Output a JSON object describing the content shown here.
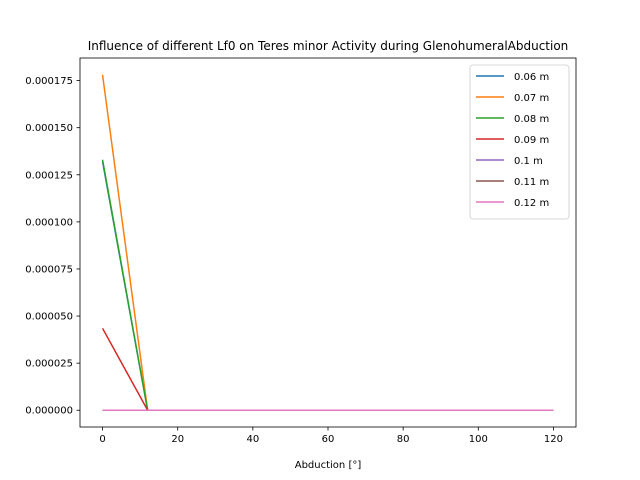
{
  "chart_data": {
    "type": "line",
    "title": "Influence of different Lf0 on Teres minor Activity during GlenohumeralAbduction",
    "xlabel": "Abduction [°]",
    "ylabel": "",
    "xlim": [
      -6,
      126
    ],
    "ylim": [
      -8.9e-06,
      0.000187
    ],
    "xticks": [
      0,
      20,
      40,
      60,
      80,
      100,
      120
    ],
    "xtick_labels": [
      "0",
      "20",
      "40",
      "60",
      "80",
      "100",
      "120"
    ],
    "yticks": [
      0,
      2.5e-05,
      5e-05,
      7.5e-05,
      0.0001,
      0.000125,
      0.00015,
      0.000175
    ],
    "ytick_labels": [
      "0.000000",
      "0.000025",
      "0.000050",
      "0.000075",
      "0.000100",
      "0.000125",
      "0.000150",
      "0.000175"
    ],
    "grid": false,
    "legend_position": "top-right",
    "x": [
      0,
      12,
      24,
      36,
      48,
      60,
      72,
      84,
      96,
      108,
      120
    ],
    "series": [
      {
        "name": "0.06 m",
        "color": "#1f77b4",
        "values": [
          0.000132,
          0,
          0,
          0,
          0,
          0,
          0,
          0,
          0,
          0,
          0
        ]
      },
      {
        "name": "0.07 m",
        "color": "#ff7f0e",
        "values": [
          0.000178,
          0,
          0,
          0,
          0,
          0,
          0,
          0,
          0,
          0,
          0
        ]
      },
      {
        "name": "0.08 m",
        "color": "#2ca02c",
        "values": [
          0.000133,
          0,
          0,
          0,
          0,
          0,
          0,
          0,
          0,
          0,
          0
        ]
      },
      {
        "name": "0.09 m",
        "color": "#d62728",
        "values": [
          4.35e-05,
          0,
          0,
          0,
          0,
          0,
          0,
          0,
          0,
          0,
          0
        ]
      },
      {
        "name": "0.1 m",
        "color": "#9467bd",
        "values": [
          0,
          0,
          0,
          0,
          0,
          0,
          0,
          0,
          0,
          0,
          0
        ]
      },
      {
        "name": "0.11 m",
        "color": "#8c564b",
        "values": [
          0,
          0,
          0,
          0,
          0,
          0,
          0,
          0,
          0,
          0,
          0
        ]
      },
      {
        "name": "0.12 m",
        "color": "#e377c2",
        "values": [
          0,
          0,
          0,
          0,
          0,
          0,
          0,
          0,
          0,
          0,
          0
        ]
      }
    ]
  }
}
